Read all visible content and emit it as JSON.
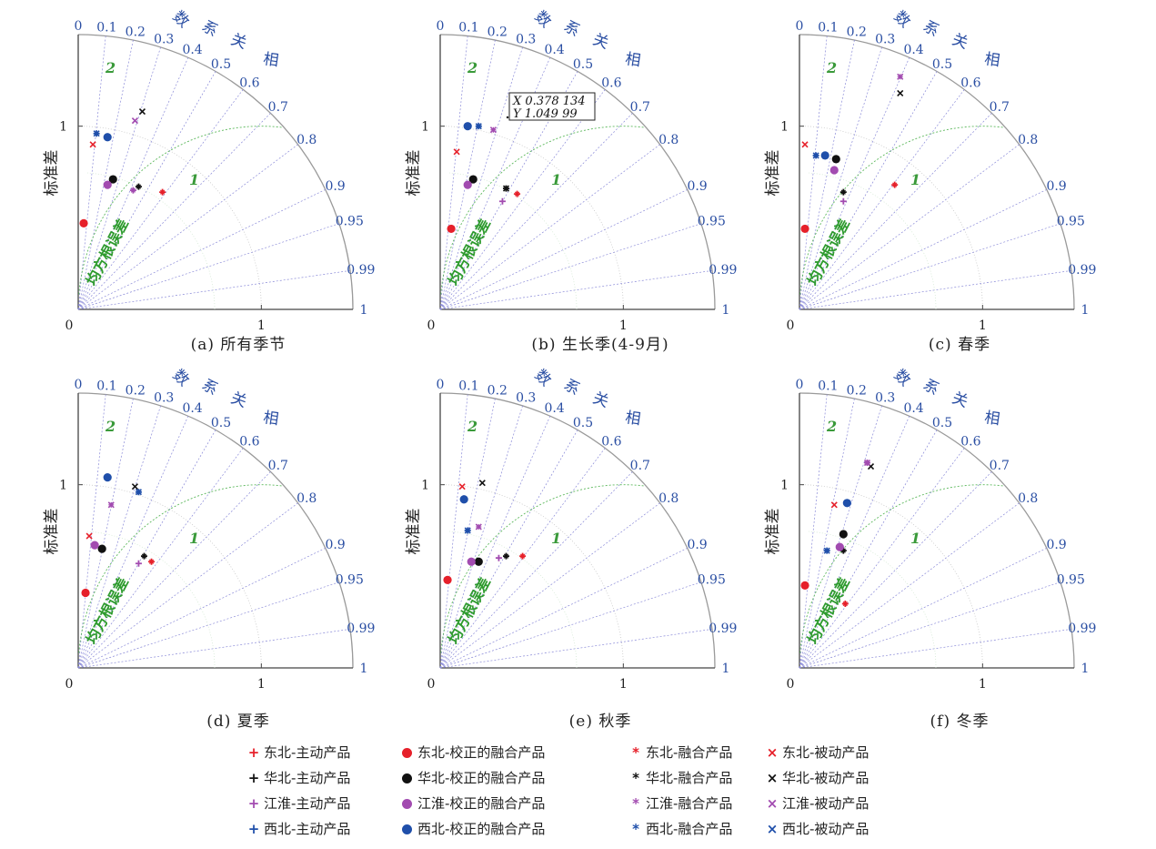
{
  "labels": {
    "std_axis": "标准差",
    "corr_axis": [
      "相",
      "关",
      "系",
      "数"
    ],
    "rmsd": "均方根误差",
    "rmsd_arc_labels": [
      "1",
      "2"
    ],
    "origin": "0",
    "one": "1"
  },
  "colors": {
    "东北": "#e6202a",
    "华北": "#111111",
    "江淮": "#a24bb0",
    "西北": "#1f4faa",
    "corr_line": "#8a8ad8",
    "rmsd_arc": "#5cb85c",
    "corr_text": "#2b4fa3"
  },
  "datatip": {
    "panel": 1,
    "x_text": "X 0.378 134",
    "y_text": "Y 1.049 99"
  },
  "chart_data": [
    {
      "type": "scatter",
      "subtype": "taylor",
      "title": "(a) 所有季节",
      "std_max": 1.5,
      "corr_ticks": [
        "0",
        "0.1",
        "0.2",
        "0.3",
        "0.4",
        "0.5",
        "0.6",
        "0.7",
        "0.8",
        "0.9",
        "0.95",
        "0.99",
        "1"
      ],
      "points": [
        {
          "region": "东北",
          "product": "主动产品",
          "x": 0.46,
          "y": 0.64
        },
        {
          "region": "东北",
          "product": "校正的融合产品",
          "x": 0.03,
          "y": 0.47
        },
        {
          "region": "东北",
          "product": "融合产品",
          "x": 0.46,
          "y": 0.64
        },
        {
          "region": "东北",
          "product": "被动产品",
          "x": 0.08,
          "y": 0.9
        },
        {
          "region": "华北",
          "product": "主动产品",
          "x": 0.33,
          "y": 0.67
        },
        {
          "region": "华北",
          "product": "校正的融合产品",
          "x": 0.19,
          "y": 0.71
        },
        {
          "region": "华北",
          "product": "融合产品",
          "x": 0.33,
          "y": 0.67
        },
        {
          "region": "华北",
          "product": "被动产品",
          "x": 0.35,
          "y": 1.08
        },
        {
          "region": "江淮",
          "product": "主动产品",
          "x": 0.3,
          "y": 0.65
        },
        {
          "region": "江淮",
          "product": "校正的融合产品",
          "x": 0.16,
          "y": 0.68
        },
        {
          "region": "江淮",
          "product": "融合产品",
          "x": 0.3,
          "y": 0.65
        },
        {
          "region": "江淮",
          "product": "被动产品",
          "x": 0.31,
          "y": 1.03
        },
        {
          "region": "西北",
          "product": "主动产品",
          "x": 0.1,
          "y": 0.96
        },
        {
          "region": "西北",
          "product": "校正的融合产品",
          "x": 0.16,
          "y": 0.94
        },
        {
          "region": "西北",
          "product": "融合产品",
          "x": 0.1,
          "y": 0.96
        },
        {
          "region": "西北",
          "product": "被动产品",
          "x": 0.1,
          "y": 0.96
        }
      ]
    },
    {
      "type": "scatter",
      "subtype": "taylor",
      "title": "(b) 生长季(4-9月)",
      "std_max": 1.5,
      "corr_ticks": [
        "0",
        "0.1",
        "0.2",
        "0.3",
        "0.4",
        "0.5",
        "0.6",
        "0.7",
        "0.8",
        "0.9",
        "0.95",
        "0.99",
        "1"
      ],
      "points": [
        {
          "region": "东北",
          "product": "主动产品",
          "x": 0.42,
          "y": 0.63
        },
        {
          "region": "东北",
          "product": "校正的融合产品",
          "x": 0.06,
          "y": 0.44
        },
        {
          "region": "东北",
          "product": "融合产品",
          "x": 0.42,
          "y": 0.63
        },
        {
          "region": "东北",
          "product": "被动产品",
          "x": 0.09,
          "y": 0.86
        },
        {
          "region": "华北",
          "product": "主动产品",
          "x": 0.36,
          "y": 0.66
        },
        {
          "region": "华北",
          "product": "校正的融合产品",
          "x": 0.18,
          "y": 0.71
        },
        {
          "region": "华北",
          "product": "融合产品",
          "x": 0.36,
          "y": 0.66
        },
        {
          "region": "华北",
          "product": "被动产品",
          "x": 0.36,
          "y": 0.66
        },
        {
          "region": "江淮",
          "product": "主动产品",
          "x": 0.34,
          "y": 0.59
        },
        {
          "region": "江淮",
          "product": "校正的融合产品",
          "x": 0.15,
          "y": 0.68
        },
        {
          "region": "江淮",
          "product": "融合产品",
          "x": 0.29,
          "y": 0.98
        },
        {
          "region": "江淮",
          "product": "被动产品",
          "x": 0.29,
          "y": 0.98
        },
        {
          "region": "西北",
          "product": "主动产品",
          "x": 0.21,
          "y": 1.0
        },
        {
          "region": "西北",
          "product": "校正的融合产品",
          "x": 0.15,
          "y": 1.0
        },
        {
          "region": "西北",
          "product": "融合产品",
          "x": 0.21,
          "y": 1.0
        },
        {
          "region": "西北",
          "product": "被动产品",
          "x": 0.21,
          "y": 1.0
        }
      ]
    },
    {
      "type": "scatter",
      "subtype": "taylor",
      "title": "(c) 春季",
      "std_max": 1.5,
      "corr_ticks": [
        "0",
        "0.1",
        "0.2",
        "0.3",
        "0.4",
        "0.5",
        "0.6",
        "0.7",
        "0.8",
        "0.9",
        "0.95",
        "0.99",
        "1"
      ],
      "points": [
        {
          "region": "东北",
          "product": "主动产品",
          "x": 0.52,
          "y": 0.68
        },
        {
          "region": "东北",
          "product": "校正的融合产品",
          "x": 0.03,
          "y": 0.44
        },
        {
          "region": "东北",
          "product": "融合产品",
          "x": 0.52,
          "y": 0.68
        },
        {
          "region": "东北",
          "product": "被动产品",
          "x": 0.03,
          "y": 0.9
        },
        {
          "region": "华北",
          "product": "主动产品",
          "x": 0.24,
          "y": 0.64
        },
        {
          "region": "华北",
          "product": "校正的融合产品",
          "x": 0.2,
          "y": 0.82
        },
        {
          "region": "华北",
          "product": "融合产品",
          "x": 0.24,
          "y": 0.64
        },
        {
          "region": "华北",
          "product": "被动产品",
          "x": 0.55,
          "y": 1.18
        },
        {
          "region": "江淮",
          "product": "主动产品",
          "x": 0.24,
          "y": 0.59
        },
        {
          "region": "江淮",
          "product": "校正的融合产品",
          "x": 0.19,
          "y": 0.76
        },
        {
          "region": "江淮",
          "product": "融合产品",
          "x": 0.55,
          "y": 1.27
        },
        {
          "region": "江淮",
          "product": "被动产品",
          "x": 0.55,
          "y": 1.27
        },
        {
          "region": "西北",
          "product": "主动产品",
          "x": 0.09,
          "y": 0.84
        },
        {
          "region": "西北",
          "product": "校正的融合产品",
          "x": 0.14,
          "y": 0.84
        },
        {
          "region": "西北",
          "product": "融合产品",
          "x": 0.09,
          "y": 0.84
        },
        {
          "region": "西北",
          "product": "被动产品",
          "x": 0.09,
          "y": 0.84
        }
      ]
    },
    {
      "type": "scatter",
      "subtype": "taylor",
      "title": "(d) 夏季",
      "std_max": 1.5,
      "corr_ticks": [
        "0",
        "0.1",
        "0.2",
        "0.3",
        "0.4",
        "0.5",
        "0.6",
        "0.7",
        "0.8",
        "0.9",
        "0.95",
        "0.99",
        "1"
      ],
      "points": [
        {
          "region": "东北",
          "product": "主动产品",
          "x": 0.4,
          "y": 0.58
        },
        {
          "region": "东北",
          "product": "校正的融合产品",
          "x": 0.04,
          "y": 0.41
        },
        {
          "region": "东北",
          "product": "融合产品",
          "x": 0.4,
          "y": 0.58
        },
        {
          "region": "东北",
          "product": "被动产品",
          "x": 0.06,
          "y": 0.72
        },
        {
          "region": "华北",
          "product": "主动产品",
          "x": 0.36,
          "y": 0.61
        },
        {
          "region": "华北",
          "product": "校正的融合产品",
          "x": 0.13,
          "y": 0.65
        },
        {
          "region": "华北",
          "product": "融合产品",
          "x": 0.36,
          "y": 0.61
        },
        {
          "region": "华北",
          "product": "被动产品",
          "x": 0.31,
          "y": 0.99
        },
        {
          "region": "江淮",
          "product": "主动产品",
          "x": 0.33,
          "y": 0.57
        },
        {
          "region": "江淮",
          "product": "校正的融合产品",
          "x": 0.09,
          "y": 0.67
        },
        {
          "region": "江淮",
          "product": "融合产品",
          "x": 0.18,
          "y": 0.89
        },
        {
          "region": "江淮",
          "product": "被动产品",
          "x": 0.18,
          "y": 0.89
        },
        {
          "region": "西北",
          "product": "主动产品",
          "x": 0.33,
          "y": 0.96
        },
        {
          "region": "西北",
          "product": "校正的融合产品",
          "x": 0.16,
          "y": 1.04
        },
        {
          "region": "西北",
          "product": "融合产品",
          "x": 0.33,
          "y": 0.96
        },
        {
          "region": "西北",
          "product": "被动产品",
          "x": 0.33,
          "y": 0.96
        }
      ]
    },
    {
      "type": "scatter",
      "subtype": "taylor",
      "title": "(e) 秋季",
      "std_max": 1.5,
      "corr_ticks": [
        "0",
        "0.1",
        "0.2",
        "0.3",
        "0.4",
        "0.5",
        "0.6",
        "0.7",
        "0.8",
        "0.9",
        "0.95",
        "0.99",
        "1"
      ],
      "points": [
        {
          "region": "东北",
          "product": "主动产品",
          "x": 0.45,
          "y": 0.61
        },
        {
          "region": "东北",
          "product": "校正的融合产品",
          "x": 0.04,
          "y": 0.48
        },
        {
          "region": "东北",
          "product": "融合产品",
          "x": 0.45,
          "y": 0.61
        },
        {
          "region": "东北",
          "product": "被动产品",
          "x": 0.12,
          "y": 0.99
        },
        {
          "region": "华北",
          "product": "主动产品",
          "x": 0.36,
          "y": 0.61
        },
        {
          "region": "华北",
          "product": "校正的融合产品",
          "x": 0.21,
          "y": 0.58
        },
        {
          "region": "华北",
          "product": "融合产品",
          "x": 0.36,
          "y": 0.61
        },
        {
          "region": "华北",
          "product": "被动产品",
          "x": 0.23,
          "y": 1.01
        },
        {
          "region": "江淮",
          "product": "主动产品",
          "x": 0.32,
          "y": 0.6
        },
        {
          "region": "江淮",
          "product": "校正的融合产品",
          "x": 0.17,
          "y": 0.58
        },
        {
          "region": "江淮",
          "product": "融合产品",
          "x": 0.21,
          "y": 0.77
        },
        {
          "region": "江淮",
          "product": "被动产品",
          "x": 0.21,
          "y": 0.77
        },
        {
          "region": "西北",
          "product": "主动产品",
          "x": 0.15,
          "y": 0.75
        },
        {
          "region": "西北",
          "product": "校正的融合产品",
          "x": 0.13,
          "y": 0.92
        },
        {
          "region": "西北",
          "product": "融合产品",
          "x": 0.15,
          "y": 0.75
        },
        {
          "region": "西北",
          "product": "被动产品",
          "x": 0.15,
          "y": 0.75
        }
      ]
    },
    {
      "type": "scatter",
      "subtype": "taylor",
      "title": "(f) 冬季",
      "std_max": 1.5,
      "corr_ticks": [
        "0",
        "0.1",
        "0.2",
        "0.3",
        "0.4",
        "0.5",
        "0.6",
        "0.7",
        "0.8",
        "0.9",
        "0.95",
        "0.99",
        "1"
      ],
      "points": [
        {
          "region": "东北",
          "product": "主动产品",
          "x": 0.25,
          "y": 0.35
        },
        {
          "region": "东北",
          "product": "校正的融合产品",
          "x": 0.03,
          "y": 0.45
        },
        {
          "region": "东北",
          "product": "融合产品",
          "x": 0.25,
          "y": 0.35
        },
        {
          "region": "东北",
          "product": "被动产品",
          "x": 0.19,
          "y": 0.89
        },
        {
          "region": "华北",
          "product": "主动产品",
          "x": 0.24,
          "y": 0.64
        },
        {
          "region": "华北",
          "product": "校正的融合产品",
          "x": 0.24,
          "y": 0.73
        },
        {
          "region": "华北",
          "product": "融合产品",
          "x": 0.24,
          "y": 0.64
        },
        {
          "region": "华北",
          "product": "被动产品",
          "x": 0.39,
          "y": 1.1
        },
        {
          "region": "江淮",
          "product": "主动产品",
          "x": 0.37,
          "y": 1.12
        },
        {
          "region": "江淮",
          "product": "校正的融合产品",
          "x": 0.22,
          "y": 0.66
        },
        {
          "region": "江淮",
          "product": "融合产品",
          "x": 0.37,
          "y": 1.12
        },
        {
          "region": "江淮",
          "product": "被动产品",
          "x": 0.37,
          "y": 1.12
        },
        {
          "region": "西北",
          "product": "主动产品",
          "x": 0.15,
          "y": 0.64
        },
        {
          "region": "西北",
          "product": "校正的融合产品",
          "x": 0.26,
          "y": 0.9
        },
        {
          "region": "西北",
          "product": "融合产品",
          "x": 0.15,
          "y": 0.64
        },
        {
          "region": "西北",
          "product": "被动产品",
          "x": 0.15,
          "y": 0.64
        }
      ]
    }
  ],
  "legend": [
    {
      "region": "东北",
      "product": "主动产品",
      "label": "东北-主动产品"
    },
    {
      "region": "东北",
      "product": "校正的融合产品",
      "label": "东北-校正的融合产品"
    },
    {
      "region": "东北",
      "product": "融合产品",
      "label": "东北-融合产品"
    },
    {
      "region": "东北",
      "product": "被动产品",
      "label": "东北-被动产品"
    },
    {
      "region": "华北",
      "product": "主动产品",
      "label": "华北-主动产品"
    },
    {
      "region": "华北",
      "product": "校正的融合产品",
      "label": "华北-校正的融合产品"
    },
    {
      "region": "华北",
      "product": "融合产品",
      "label": "华北-融合产品"
    },
    {
      "region": "华北",
      "product": "被动产品",
      "label": "华北-被动产品"
    },
    {
      "region": "江淮",
      "product": "主动产品",
      "label": "江淮-主动产品"
    },
    {
      "region": "江淮",
      "product": "校正的融合产品",
      "label": "江淮-校正的融合产品"
    },
    {
      "region": "江淮",
      "product": "融合产品",
      "label": "江淮-融合产品"
    },
    {
      "region": "江淮",
      "product": "被动产品",
      "label": "江淮-被动产品"
    },
    {
      "region": "西北",
      "product": "主动产品",
      "label": "西北-主动产品"
    },
    {
      "region": "西北",
      "product": "校正的融合产品",
      "label": "西北-校正的融合产品"
    },
    {
      "region": "西北",
      "product": "融合产品",
      "label": "西北-融合产品"
    },
    {
      "region": "西北",
      "product": "被动产品",
      "label": "西北-被动产品"
    }
  ]
}
